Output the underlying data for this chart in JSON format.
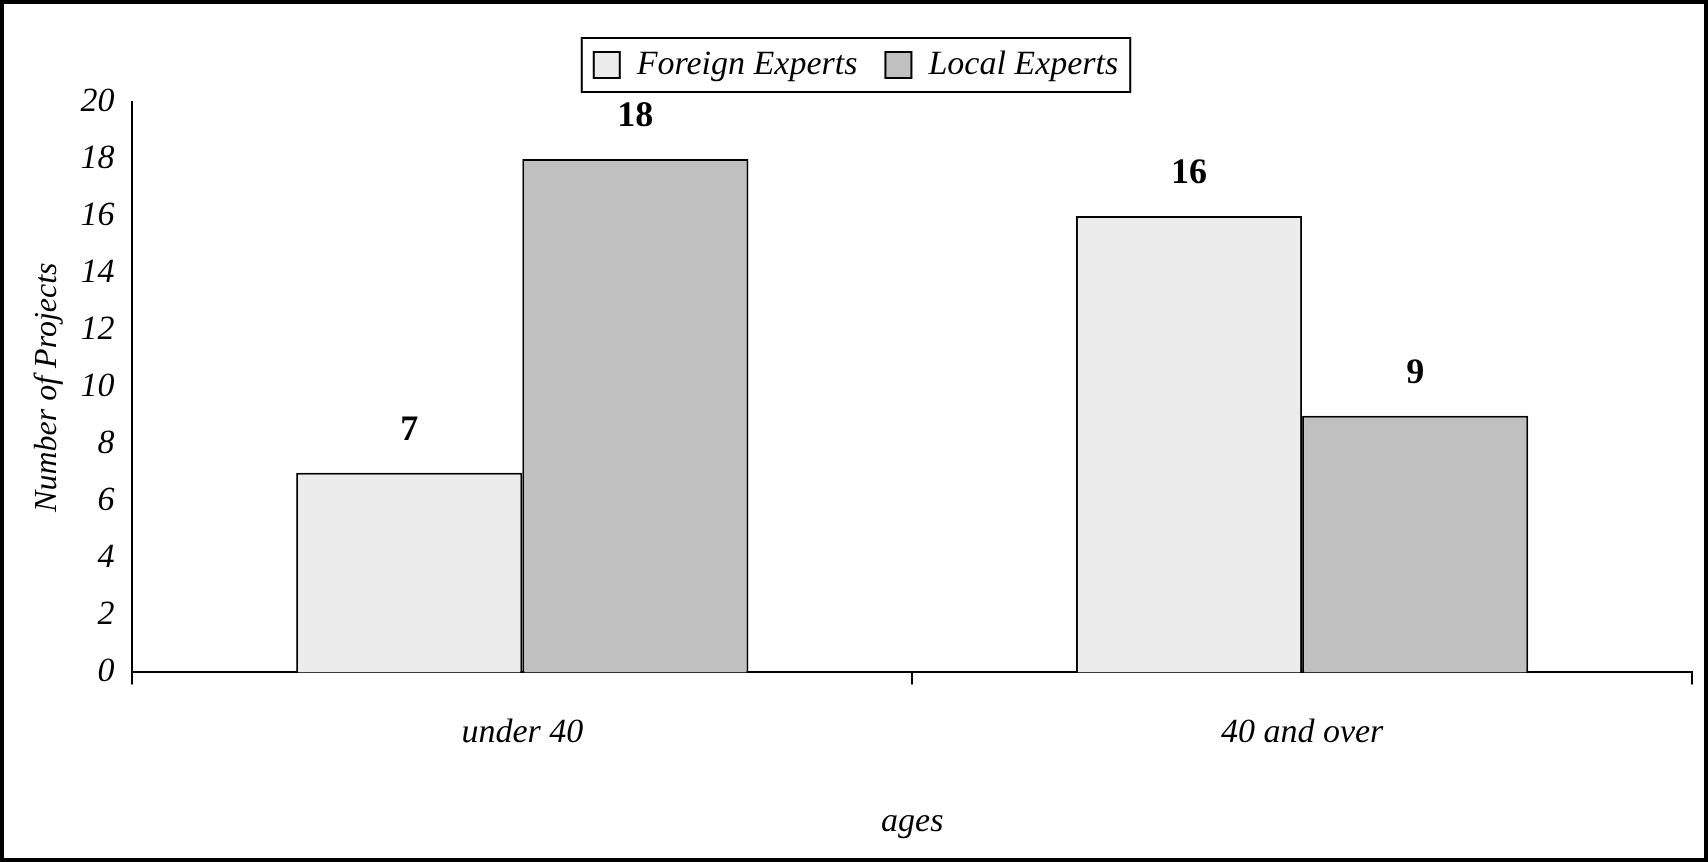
{
  "chart_data": {
    "type": "bar",
    "xlabel": "ages",
    "ylabel": "Number of Projects",
    "categories": [
      "under 40",
      "40 and over"
    ],
    "series": [
      {
        "name": "Foreign Experts",
        "color": "#ececec",
        "values": [
          7,
          16
        ]
      },
      {
        "name": "Local Experts",
        "color": "#c0c0c0",
        "values": [
          18,
          9
        ]
      }
    ],
    "ylim": [
      0,
      20
    ],
    "yticks": [
      0,
      2,
      4,
      6,
      8,
      10,
      12,
      14,
      16,
      18,
      20
    ],
    "grid": false,
    "legend": "top",
    "data_labels": true
  }
}
